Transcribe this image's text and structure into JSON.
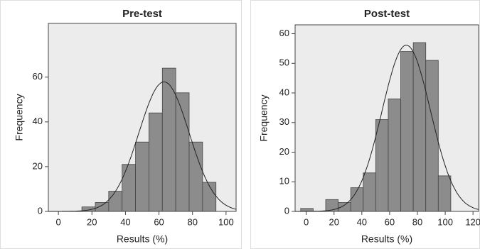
{
  "chart_data": [
    {
      "type": "histogram",
      "title": "Pre-test",
      "x_label": "Results (%)",
      "y_label": "Frequency",
      "bins": [
        14,
        22,
        30,
        38,
        46,
        54,
        62,
        70,
        78,
        86,
        94
      ],
      "values": [
        2,
        4,
        9,
        21,
        31,
        44,
        64,
        53,
        31,
        13
      ],
      "color": "#8c8c8c",
      "normal_fit": {
        "mean": 63,
        "sd": 15
      },
      "xlim": [
        -6,
        106
      ],
      "xticks": [
        0,
        20,
        40,
        60,
        80,
        100
      ],
      "ylim": [
        0,
        84
      ],
      "yticks": [
        0,
        20,
        40,
        60
      ]
    },
    {
      "type": "histogram",
      "title": "Post-test",
      "x_label": "Results (%)",
      "y_label": "Frequency",
      "bins": [
        -4,
        5,
        14,
        23,
        32,
        41,
        50,
        59,
        68,
        77,
        86,
        95,
        104
      ],
      "values": [
        1,
        0,
        4,
        3,
        8,
        13,
        31,
        38,
        54,
        57,
        51,
        12
      ],
      "color": "#8c8c8c",
      "normal_fit": {
        "mean": 72,
        "sd": 17.4
      },
      "xlim": [
        -8,
        124
      ],
      "xticks": [
        0,
        20,
        40,
        60,
        80,
        100,
        120
      ],
      "ylim": [
        0,
        63
      ],
      "yticks": [
        0,
        10,
        20,
        30,
        40,
        50,
        60
      ]
    }
  ]
}
